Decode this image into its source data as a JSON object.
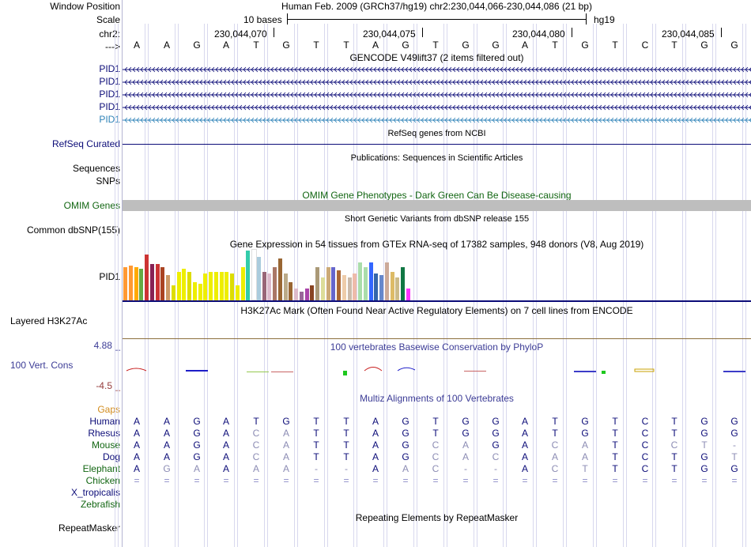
{
  "header": {
    "window_position_label": "Window Position",
    "scale_label": "Scale",
    "chrom_label": "chr2:",
    "strand_label": "--->",
    "assembly_text": "Human Feb. 2009 (GRCh37/hg19)   chr2:230,044,066-230,044,086 (21 bp)",
    "scale_text": "10 bases",
    "scale_db": "hg19",
    "positions": [
      "230,044,070",
      "230,044,075",
      "230,044,080",
      "230,044,085"
    ],
    "bases": [
      "A",
      "A",
      "G",
      "A",
      "T",
      "G",
      "T",
      "T",
      "A",
      "G",
      "T",
      "G",
      "G",
      "A",
      "T",
      "G",
      "T",
      "C",
      "T",
      "G",
      "G"
    ]
  },
  "tracks": {
    "gencode": {
      "title": "GENCODE V49lift37 (2 items filtered out)",
      "items": [
        {
          "label": "PID1",
          "color": "#0c0c78"
        },
        {
          "label": "PID1",
          "color": "#0c0c78"
        },
        {
          "label": "PID1",
          "color": "#0c0c78"
        },
        {
          "label": "PID1",
          "color": "#0c0c78"
        },
        {
          "label": "PID1",
          "color": "#2f83b8"
        }
      ]
    },
    "refseq": {
      "title": "RefSeq genes from NCBI",
      "label": "RefSeq Curated",
      "color": "#0c0c78"
    },
    "pubs": {
      "title": "Publications: Sequences in Scientific Articles",
      "label1": "Sequences",
      "label2": "SNPs"
    },
    "omim": {
      "title": "OMIM Gene Phenotypes - Dark Green Can Be Disease-causing",
      "label": "OMIM Genes",
      "color": "#126612"
    },
    "dbsnp": {
      "title": "Short Genetic Variants from dbSNP release 155",
      "label": "Common dbSNP(155)"
    },
    "gtex": {
      "title": "Gene Expression in 54 tissues from GTEx RNA-seq of 17382 samples, 948 donors (V8, Aug 2019)",
      "label": "PID1",
      "values": [
        40,
        42,
        40,
        38,
        55,
        44,
        44,
        40,
        30,
        18,
        34,
        38,
        34,
        22,
        20,
        32,
        34,
        34,
        34,
        34,
        32,
        18,
        40,
        60,
        60,
        52,
        34,
        32,
        40,
        50,
        32,
        22,
        14,
        10,
        14,
        18,
        40,
        28,
        40,
        40,
        36,
        30,
        28,
        32,
        46,
        40,
        46,
        32,
        30,
        46,
        34,
        28,
        40,
        14
      ],
      "colors": [
        "#ff9933",
        "#ff9933",
        "#ffaa00",
        "#66aa44",
        "#cc3333",
        "#882255",
        "#cc3333",
        "#aa4422",
        "#cc9966",
        "#dddd00",
        "#eeee00",
        "#eeee00",
        "#dddd00",
        "#eeee00",
        "#eeee00",
        "#eeee00",
        "#eeee00",
        "#eeee00",
        "#eeee00",
        "#eeee00",
        "#dddd00",
        "#eeee00",
        "#eeee00",
        "#33ccaa",
        "#ffffff",
        "#aaccdd",
        "#996677",
        "#ddbbcc",
        "#aa7766",
        "#996633",
        "#bbaa88",
        "#996633",
        "#ddbbcc",
        "#996699",
        "#aa44aa",
        "#884422",
        "#aa9977",
        "#dddd99",
        "#ccaa77",
        "#6666cc",
        "#aa6633",
        "#eeccaa",
        "#ccbbaa",
        "#eebbaa",
        "#aaddaa",
        "#aaddaa",
        "#3366ff",
        "#3366aa",
        "#6688cc",
        "#ccaa99",
        "#ddbb66",
        "#ccbb88",
        "#117744",
        "#ff33ff"
      ]
    },
    "h3k27ac": {
      "title": "H3K27Ac Mark (Often Found Near Active Regulatory Elements) on 7 cell lines from ENCODE",
      "label": "Layered H3K27Ac"
    },
    "phylop": {
      "title": "100 vertebrates Basewise Conservation by PhyloP",
      "label": "100 Vert. Cons",
      "ymax": "4.88 _",
      "ymin": "-4.5 _",
      "color": "#3c3c96"
    },
    "multiz": {
      "title": "Multiz Alignments of 100 Vertebrates",
      "gaps_label": "Gaps",
      "species": [
        {
          "name": "Human",
          "color": "#0c0c78",
          "seq": [
            "A",
            "A",
            "G",
            "A",
            "T",
            "G",
            "T",
            "T",
            "A",
            "G",
            "T",
            "G",
            "G",
            "A",
            "T",
            "G",
            "T",
            "C",
            "T",
            "G",
            "G"
          ]
        },
        {
          "name": "Rhesus",
          "color": "#0c0c78",
          "seq": [
            "A",
            "A",
            "G",
            "A",
            "C",
            "A",
            "T",
            "T",
            "A",
            "G",
            "T",
            "G",
            "G",
            "A",
            "T",
            "G",
            "T",
            "C",
            "T",
            "G",
            "G"
          ]
        },
        {
          "name": "Mouse",
          "color": "#126612",
          "seq": [
            "A",
            "A",
            "G",
            "A",
            "C",
            "A",
            "T",
            "T",
            "A",
            "G",
            "C",
            "A",
            "G",
            "A",
            "C",
            "A",
            "T",
            "C",
            "C",
            "T",
            "-"
          ]
        },
        {
          "name": "Dog",
          "color": "#0c0c78",
          "seq": [
            "A",
            "A",
            "G",
            "A",
            "C",
            "A",
            "T",
            "T",
            "A",
            "G",
            "C",
            "A",
            "C",
            "A",
            "A",
            "A",
            "T",
            "C",
            "T",
            "G",
            "T"
          ]
        },
        {
          "name": "Elephant",
          "color": "#126612",
          "seq": [
            "A",
            "G",
            "A",
            "A",
            "A",
            "A",
            "-",
            "-",
            "A",
            "A",
            "C",
            "-",
            "-",
            "A",
            "C",
            "T",
            "T",
            "C",
            "T",
            "G",
            "G"
          ]
        },
        {
          "name": "Chicken",
          "color": "#126612",
          "seq": [
            "=",
            "=",
            "=",
            "=",
            "=",
            "=",
            "=",
            "=",
            "=",
            "=",
            "=",
            "=",
            "=",
            "=",
            "=",
            "=",
            "=",
            "=",
            "=",
            "=",
            "="
          ]
        },
        {
          "name": "X_tropicalis",
          "color": "#0c0c78",
          "seq": []
        },
        {
          "name": "Zebrafish",
          "color": "#126612",
          "seq": []
        }
      ]
    },
    "repeatmasker": {
      "title": "Repeating Elements by RepeatMasker",
      "label": "RepeatMasker"
    }
  }
}
